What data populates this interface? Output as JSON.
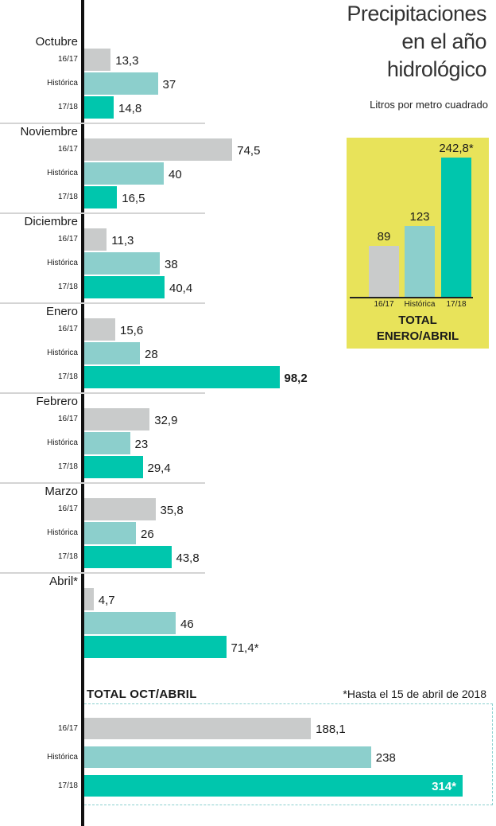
{
  "title": [
    "Precipitaciones",
    "en el año",
    "hidrológico"
  ],
  "subtitle": "Litros por metro cuadrado",
  "series_labels": [
    "16/17",
    "Histórica",
    "17/18"
  ],
  "colors": {
    "s1617": "#c9cbcb",
    "historica": "#8ccfcc",
    "s1718": "#00c6ad",
    "panel": "#e8e35a"
  },
  "chart_data": [
    {
      "type": "bar",
      "orientation": "horizontal",
      "categories": [
        "Octubre",
        "Noviembre",
        "Diciembre",
        "Enero",
        "Febrero",
        "Marzo",
        "Abril*"
      ],
      "series": [
        {
          "name": "16/17",
          "values": [
            13.3,
            74.5,
            11.3,
            15.6,
            32.9,
            35.8,
            4.7
          ],
          "labels": [
            "13,3",
            "74,5",
            "11,3",
            "15,6",
            "32,9",
            "35,8",
            "4,7"
          ]
        },
        {
          "name": "Histórica",
          "values": [
            37,
            40,
            38,
            28,
            23,
            26,
            46
          ],
          "labels": [
            "37",
            "40",
            "38",
            "28",
            "23",
            "26",
            "46"
          ]
        },
        {
          "name": "17/18",
          "values": [
            14.8,
            16.5,
            40.4,
            98.2,
            29.4,
            43.8,
            71.4
          ],
          "labels": [
            "14,8",
            "16,5",
            "40,4",
            "98,2",
            "29,4",
            "43,8",
            "71,4*"
          ]
        }
      ]
    },
    {
      "type": "bar",
      "title": "TOTAL ENERO/ABRIL",
      "categories": [
        "16/17",
        "Histórica",
        "17/18"
      ],
      "values": [
        89,
        123,
        242.8
      ],
      "labels": [
        "89",
        "123",
        "242,8*"
      ]
    },
    {
      "type": "bar",
      "orientation": "horizontal",
      "title": "TOTAL OCT/ABRIL",
      "categories": [
        "16/17",
        "Histórica",
        "17/18"
      ],
      "values": [
        188.1,
        238,
        314
      ],
      "labels": [
        "188,1",
        "238",
        "314*"
      ]
    }
  ],
  "mini_title": [
    "TOTAL",
    "ENERO/ABRIL"
  ],
  "total_title": "TOTAL OCT/ABRIL",
  "footnote": "*Hasta el 15 de abril de 2018"
}
